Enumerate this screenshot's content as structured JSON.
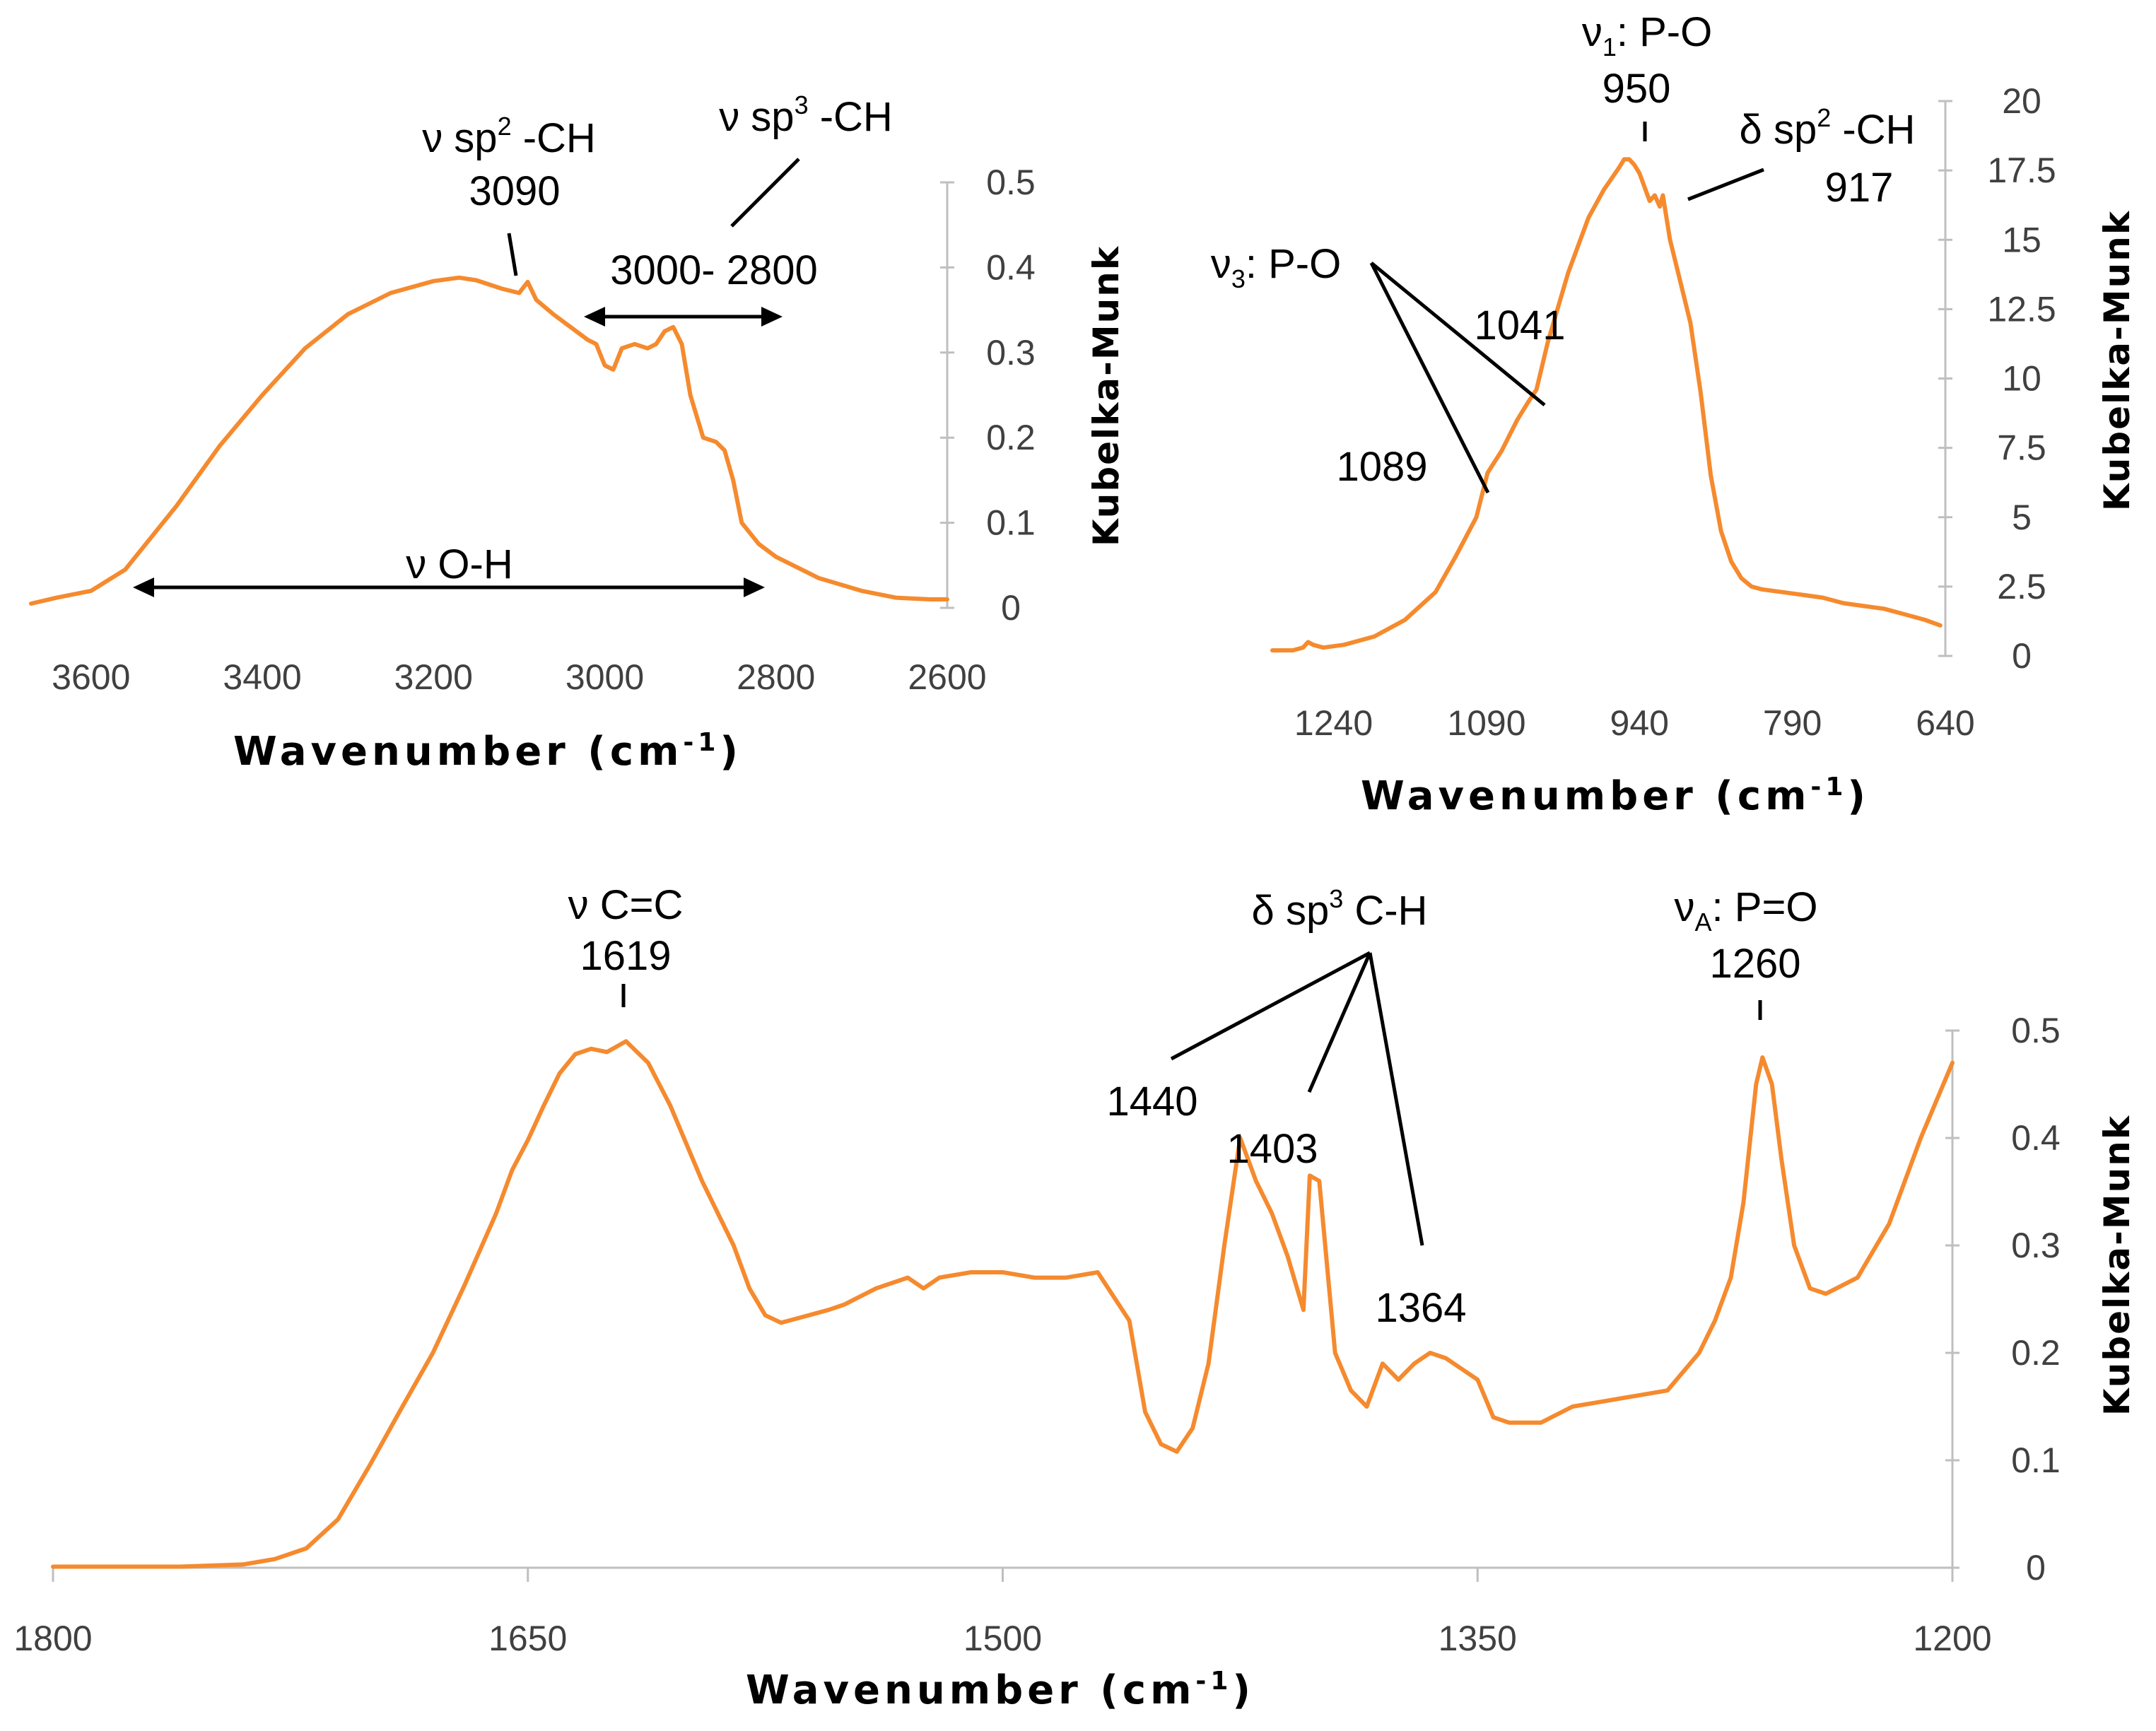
{
  "chart_data": [
    {
      "type": "line",
      "id": "chart1",
      "xlabel": "Wavenumber (cm",
      "xlabel_sup": "-1",
      "xlabel_end": ")",
      "ylabel": "Kubelka-Munk",
      "xlim": [
        3670,
        2600
      ],
      "ylim": [
        0,
        0.5
      ],
      "xticks": [
        3600,
        3400,
        3200,
        3000,
        2800,
        2600
      ],
      "xtick_labels": [
        "3600",
        "3400",
        "3200",
        "3000",
        "2800",
        "2600"
      ],
      "yticks": [
        0,
        0.1,
        0.2,
        0.3,
        0.4,
        0.5
      ],
      "ytick_labels": [
        "0",
        "0.1",
        "0.2",
        "0.3",
        "0.4",
        "0.5"
      ],
      "series": [
        {
          "name": "spectrum",
          "color": "#F58A2E",
          "x": [
            3670,
            3640,
            3600,
            3560,
            3500,
            3450,
            3400,
            3350,
            3300,
            3250,
            3200,
            3170,
            3150,
            3120,
            3100,
            3090,
            3080,
            3060,
            3040,
            3020,
            3010,
            3000,
            2990,
            2980,
            2965,
            2950,
            2940,
            2930,
            2920,
            2910,
            2900,
            2885,
            2870,
            2860,
            2850,
            2840,
            2820,
            2800,
            2750,
            2700,
            2660,
            2620,
            2600
          ],
          "y": [
            0.005,
            0.012,
            0.02,
            0.045,
            0.12,
            0.19,
            0.25,
            0.305,
            0.345,
            0.37,
            0.384,
            0.388,
            0.385,
            0.375,
            0.37,
            0.383,
            0.362,
            0.345,
            0.33,
            0.315,
            0.31,
            0.285,
            0.28,
            0.305,
            0.31,
            0.305,
            0.31,
            0.325,
            0.33,
            0.31,
            0.25,
            0.2,
            0.195,
            0.185,
            0.15,
            0.1,
            0.075,
            0.06,
            0.035,
            0.02,
            0.012,
            0.01,
            0.01
          ]
        }
      ],
      "annotations": {
        "sp2": {
          "pre": "ν sp",
          "sup": "2",
          "post": " -CH",
          "value": "3090"
        },
        "sp3": {
          "pre": "ν sp",
          "sup": "3",
          "post": " -CH"
        },
        "range": "3000- 2800",
        "oh": "ν O-H"
      }
    },
    {
      "type": "line",
      "id": "chart2",
      "xlabel": "Wavenumber (cm",
      "xlabel_sup": "-1",
      "xlabel_end": ")",
      "ylabel": "Kubelka-Munk",
      "xlim": [
        1300,
        640
      ],
      "ylim": [
        0,
        20
      ],
      "xticks": [
        1240,
        1090,
        940,
        790,
        640
      ],
      "xtick_labels": [
        "1240",
        "1090",
        "940",
        "790",
        "640"
      ],
      "yticks": [
        0,
        2.5,
        5,
        7.5,
        10,
        12.5,
        15,
        17.5,
        20
      ],
      "ytick_labels": [
        "0",
        "2.5",
        "5",
        "7.5",
        "10",
        "12.5",
        "15",
        "17.5",
        "20"
      ],
      "series": [
        {
          "name": "spectrum",
          "color": "#F58A2E",
          "x": [
            1300,
            1280,
            1270,
            1265,
            1260,
            1250,
            1230,
            1200,
            1170,
            1140,
            1120,
            1100,
            1089,
            1075,
            1060,
            1050,
            1041,
            1030,
            1010,
            990,
            975,
            960,
            955,
            950,
            945,
            940,
            930,
            925,
            920,
            917,
            910,
            900,
            890,
            880,
            870,
            860,
            850,
            840,
            830,
            820,
            800,
            780,
            760,
            740,
            720,
            700,
            680,
            660,
            645
          ],
          "y": [
            0.2,
            0.2,
            0.3,
            0.5,
            0.4,
            0.3,
            0.4,
            0.7,
            1.3,
            2.3,
            3.6,
            5.0,
            6.6,
            7.4,
            8.5,
            9.1,
            9.6,
            11.3,
            13.8,
            15.8,
            16.8,
            17.6,
            17.9,
            17.9,
            17.7,
            17.4,
            16.4,
            16.6,
            16.2,
            16.6,
            15.0,
            13.5,
            12.0,
            9.5,
            6.5,
            4.5,
            3.4,
            2.8,
            2.5,
            2.4,
            2.3,
            2.2,
            2.1,
            1.9,
            1.8,
            1.7,
            1.5,
            1.3,
            1.1
          ]
        }
      ],
      "annotations": {
        "v1": {
          "pre": "ν",
          "sub": "1",
          "post": ": P-O",
          "value": "950"
        },
        "d917": {
          "pre": "δ sp",
          "sup": "2",
          "post": " -CH",
          "value": "917"
        },
        "v3": {
          "pre": "ν",
          "sub": "3",
          "post": ": P-O"
        },
        "p1041": "1041",
        "p1089": "1089"
      }
    },
    {
      "type": "line",
      "id": "chart3",
      "xlabel": "Wavenumber (cm",
      "xlabel_sup": "-1",
      "xlabel_end": ")",
      "ylabel": "Kubelka-Munk",
      "xlim": [
        1800,
        1200
      ],
      "ylim": [
        0,
        0.5
      ],
      "xticks": [
        1800,
        1650,
        1500,
        1350,
        1200
      ],
      "xtick_labels": [
        "1800",
        "1650",
        "1500",
        "1350",
        "1200"
      ],
      "yticks": [
        0,
        0.1,
        0.2,
        0.3,
        0.4,
        0.5
      ],
      "ytick_labels": [
        "0",
        "0.1",
        "0.2",
        "0.3",
        "0.4",
        "0.5"
      ],
      "series": [
        {
          "name": "spectrum",
          "color": "#F58A2E",
          "x": [
            1800,
            1760,
            1740,
            1730,
            1720,
            1710,
            1700,
            1690,
            1680,
            1670,
            1660,
            1655,
            1650,
            1645,
            1640,
            1635,
            1630,
            1625,
            1619,
            1612,
            1605,
            1595,
            1585,
            1580,
            1575,
            1570,
            1565,
            1560,
            1555,
            1550,
            1540,
            1530,
            1525,
            1520,
            1510,
            1500,
            1490,
            1480,
            1470,
            1460,
            1455,
            1450,
            1445,
            1440,
            1435,
            1430,
            1425,
            1420,
            1415,
            1410,
            1405,
            1403,
            1400,
            1395,
            1390,
            1385,
            1380,
            1375,
            1370,
            1365,
            1360,
            1355,
            1350,
            1345,
            1340,
            1330,
            1320,
            1310,
            1300,
            1290,
            1280,
            1275,
            1270,
            1266,
            1262,
            1260,
            1257,
            1254,
            1250,
            1245,
            1240,
            1230,
            1220,
            1210,
            1200
          ]
        }
      ],
      "annotations": {
        "cc": {
          "label": "ν C=C",
          "value": "1619"
        },
        "dsp3": {
          "pre": "δ sp",
          "sup": "3",
          "post": " C-H"
        },
        "p1440": "1440",
        "p1403": "1403",
        "p1364": "1364",
        "pa": {
          "pre": "ν",
          "sub": "A",
          "post": ": P=O",
          "value": "1260"
        }
      }
    }
  ]
}
